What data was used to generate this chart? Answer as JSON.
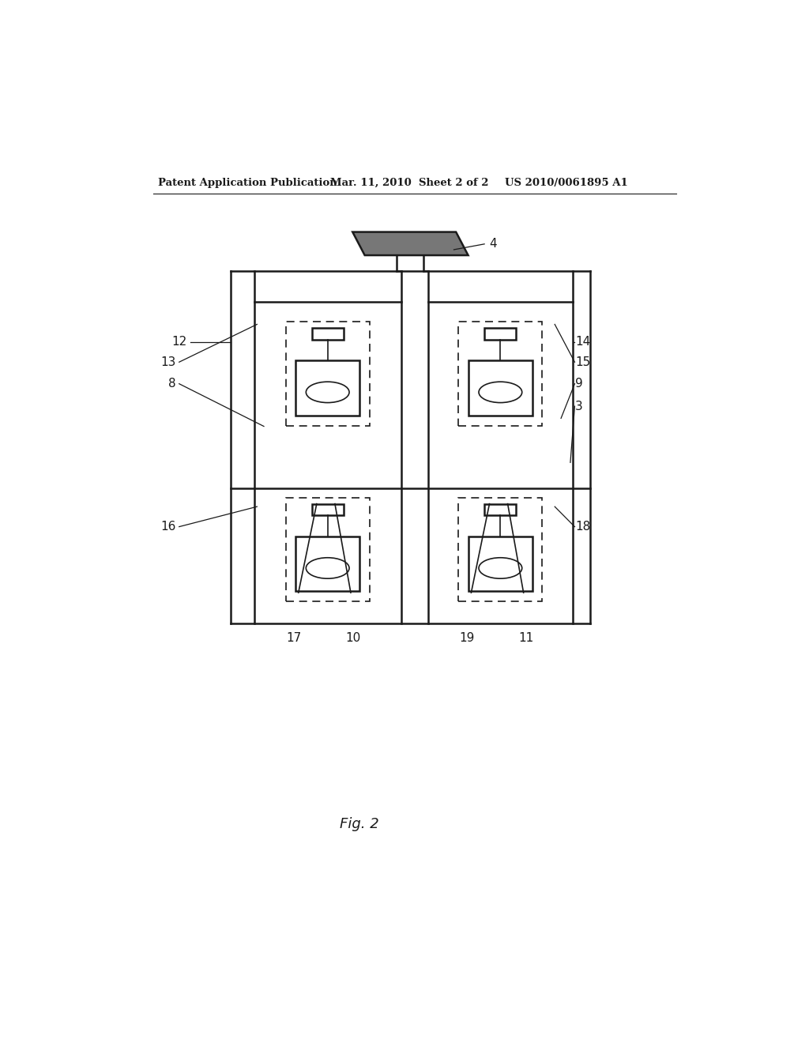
{
  "bg_color": "#ffffff",
  "line_color": "#1a1a1a",
  "header_left": "Patent Application Publication",
  "header_mid": "Mar. 11, 2010  Sheet 2 of 2",
  "header_right": "US 2010/0061895 A1",
  "fig_label": "Fig. 2",
  "lw_main": 1.8,
  "lw_thin": 1.2,
  "lw_leader": 0.9,
  "roof_fill": "#777777",
  "panel_fill": "none",
  "label_fs": 11
}
